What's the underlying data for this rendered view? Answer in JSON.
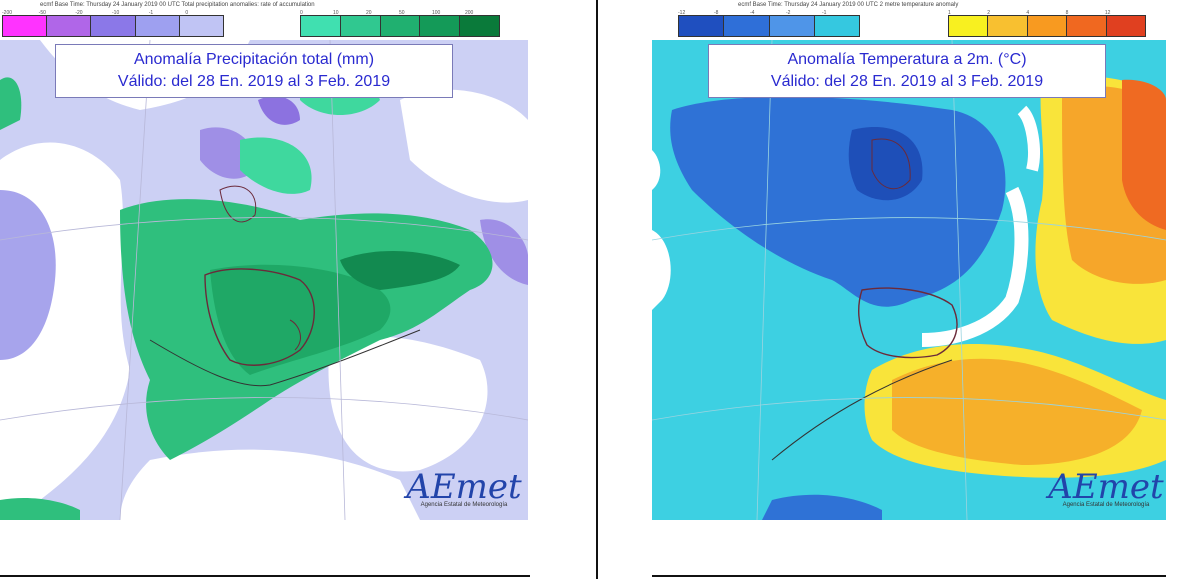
{
  "left": {
    "header": "ecmf Base Time: Thursday 24 January 2019 00 UTC Total precipitation anomalies: rate of accumulation",
    "legend_ticks_neg": [
      "-200",
      "-50",
      "-20",
      "-10",
      "-1",
      "0"
    ],
    "legend_ticks_pos": [
      "0",
      "10",
      "20",
      "50",
      "100",
      "200"
    ],
    "legend_neg_colors": [
      "#ff33ff",
      "#b066e8",
      "#8b78e8",
      "#9ea0f0",
      "#c0c4f4"
    ],
    "legend_pos_colors": [
      "#40e0b0",
      "#30c890",
      "#20b070",
      "#149a58",
      "#0a7a3a"
    ],
    "title_line1": "Anomalía Precipitación total (mm)",
    "title_line2": "Válido: del 28 En. 2019 al 3 Feb. 2019",
    "logo_text": "AEmet",
    "logo_sub": "Agencia Estatal de Meteorología"
  },
  "right": {
    "header": "ecmf Base Time: Thursday 24 January 2019 00 UTC 2 metre temperature anomaly",
    "legend_ticks_neg": [
      "-12",
      "-8",
      "-4",
      "-2",
      "-1"
    ],
    "legend_ticks_pos": [
      "1",
      "2",
      "4",
      "8",
      "12"
    ],
    "legend_neg_colors": [
      "#1f4fbf",
      "#2f6fd8",
      "#4f95e8",
      "#35c8e0"
    ],
    "legend_pos_colors": [
      "#f8f020",
      "#f8c030",
      "#f89a20",
      "#f06820",
      "#e04020"
    ],
    "title_line1": "Anomalía Temperatura a 2m. (°C)",
    "title_line2": "Válido: del 28 En. 2019 al 3 Feb. 2019",
    "logo_text": "AEmet",
    "logo_sub": "Agencia Estatal de Meteorología"
  }
}
